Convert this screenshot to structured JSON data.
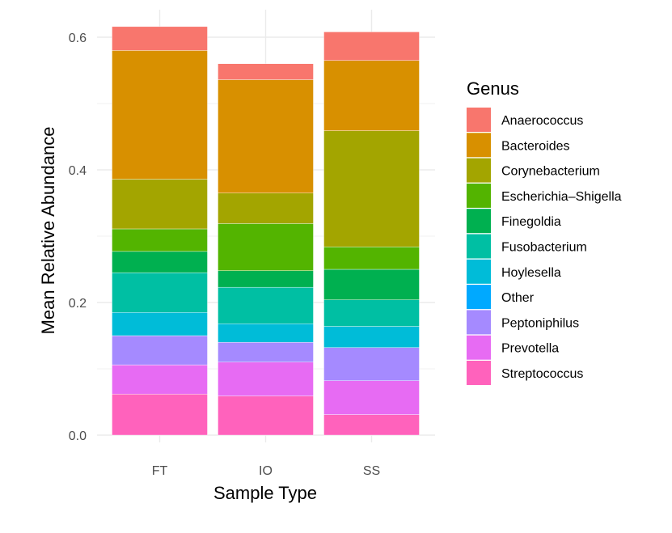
{
  "chart_data": {
    "type": "bar",
    "stacked": true,
    "title": "",
    "xlabel": "Sample Type",
    "ylabel": "Mean Relative Abundance",
    "categories": [
      "FT",
      "IO",
      "SS"
    ],
    "ylim": [
      -0.01,
      0.645
    ],
    "yticks": [
      0.0,
      0.2,
      0.4,
      0.6
    ],
    "ytick_labels": [
      "0.0",
      "0.2",
      "0.4",
      "0.6"
    ],
    "grid": true,
    "legend": {
      "title": "Genus",
      "position": "right"
    },
    "series": [
      {
        "name": "Streptococcus",
        "color": "#FF62BC",
        "values": [
          0.062,
          0.059,
          0.031
        ]
      },
      {
        "name": "Prevotella",
        "color": "#E76BF3",
        "values": [
          0.044,
          0.051,
          0.051
        ]
      },
      {
        "name": "Peptoniphilus",
        "color": "#A58AFF",
        "values": [
          0.044,
          0.03,
          0.05
        ]
      },
      {
        "name": "Other",
        "color": "#00A9FF",
        "values": [
          0.0,
          0.0,
          0.0
        ]
      },
      {
        "name": "Hoylesella",
        "color": "#00BCD8",
        "values": [
          0.035,
          0.028,
          0.032
        ]
      },
      {
        "name": "Fusobacterium",
        "color": "#00BFA3",
        "values": [
          0.06,
          0.055,
          0.04
        ]
      },
      {
        "name": "Finegoldia",
        "color": "#00B050",
        "values": [
          0.032,
          0.025,
          0.046
        ]
      },
      {
        "name": "Escherichia–Shigella",
        "color": "#53B400",
        "values": [
          0.034,
          0.071,
          0.034
        ]
      },
      {
        "name": "Corynebacterium",
        "color": "#A3A500",
        "values": [
          0.075,
          0.046,
          0.175
        ]
      },
      {
        "name": "Bacteroides",
        "color": "#D89000",
        "values": [
          0.194,
          0.171,
          0.106
        ]
      },
      {
        "name": "Anaerococcus",
        "color": "#F8766D",
        "values": [
          0.036,
          0.024,
          0.043
        ]
      }
    ],
    "legend_order": [
      "Anaerococcus",
      "Bacteroides",
      "Corynebacterium",
      "Escherichia–Shigella",
      "Finegoldia",
      "Fusobacterium",
      "Hoylesella",
      "Other",
      "Peptoniphilus",
      "Prevotella",
      "Streptococcus"
    ]
  }
}
